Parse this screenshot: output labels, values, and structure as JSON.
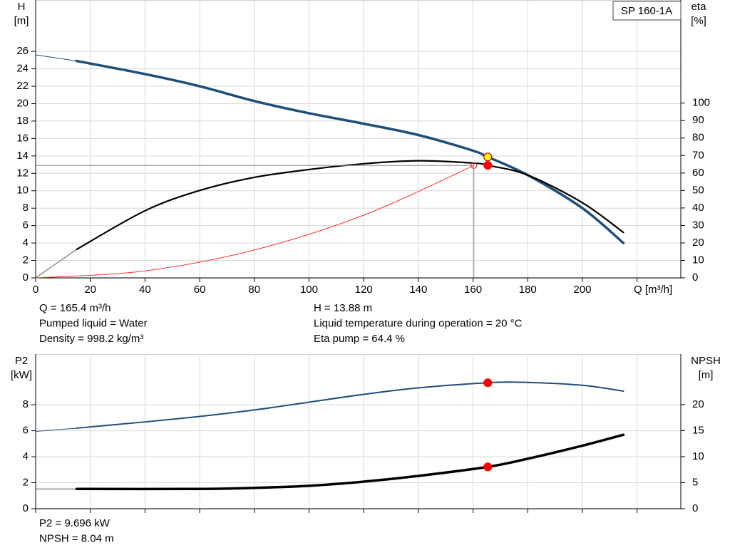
{
  "chart_data": [
    {
      "type": "line",
      "title": "SP 160-1A",
      "x_label": "Q [m³/h]",
      "y_label": "H",
      "y_unit": "[m]",
      "y2_label": "eta",
      "y2_unit": "[%]",
      "xlim": [
        0,
        236
      ],
      "xticks": [
        0,
        20,
        40,
        60,
        80,
        100,
        120,
        140,
        160,
        180,
        200,
        220
      ],
      "xtick_labels": [
        0,
        20,
        40,
        60,
        80,
        100,
        120,
        140,
        160,
        180,
        200
      ],
      "ylim": [
        0,
        31.9
      ],
      "yticks": [
        0,
        2,
        4,
        6,
        8,
        10,
        12,
        14,
        16,
        18,
        20,
        22,
        24,
        26
      ],
      "y2lim": [
        0,
        159
      ],
      "y2ticks": [
        0,
        10,
        20,
        30,
        40,
        50,
        60,
        70,
        80,
        90,
        100
      ],
      "grid": true,
      "series": [
        {
          "color": "#1f4e79",
          "width": 1,
          "x": [
            0,
            15
          ],
          "values": [
            25.6,
            24.9
          ]
        },
        {
          "color": "#1f4e79",
          "width": 3.5,
          "x": [
            15,
            40,
            60,
            80,
            100,
            120,
            140,
            160,
            165.4,
            180,
            200,
            215
          ],
          "values": [
            24.9,
            23.4,
            22.0,
            20.3,
            18.9,
            17.7,
            16.4,
            14.6,
            13.88,
            11.8,
            8.0,
            4.0
          ]
        },
        {
          "color": "#555555",
          "width": 1,
          "axis": "y2",
          "x": [
            0,
            15
          ],
          "values": [
            0,
            16.3
          ]
        },
        {
          "color": "#000000",
          "width": 2.2,
          "axis": "y2",
          "x": [
            15,
            40,
            60,
            80,
            100,
            120,
            140,
            160,
            165.4,
            180,
            200,
            215
          ],
          "values": [
            16.3,
            38.4,
            50.0,
            57.5,
            62.0,
            65.3,
            67.0,
            65.7,
            64.4,
            58.8,
            43.0,
            26.0
          ]
        },
        {
          "color": "#ff3030",
          "width": 1,
          "x": [
            0,
            40,
            80,
            120,
            160.3
          ],
          "values": [
            0,
            0.8,
            3.2,
            7.2,
            12.9
          ]
        }
      ],
      "points": [
        {
          "x": 160.3,
          "y": 12.9,
          "color": "#ff3030",
          "fill": "none",
          "crosshair": true
        },
        {
          "x": 165.4,
          "y": 64.4,
          "axis": "y2",
          "color": "#ff0000",
          "fill": "#ff0000"
        },
        {
          "x": 165.4,
          "y": 13.88,
          "color": "#cc0000",
          "fill": "#ffff00"
        }
      ],
      "info": [
        [
          "Q = 165.4 m³/h",
          "Pumped liquid = Water",
          "Density = 998.2 kg/m³"
        ],
        [
          "H = 13.88 m",
          "Liquid temperature during operation = 20 °C",
          "Eta pump = 64.4 %"
        ]
      ]
    },
    {
      "type": "line",
      "y_label": "P2",
      "y_unit": "[kW]",
      "y2_label": "NPSH",
      "y2_unit": "[m]",
      "xlim": [
        0,
        236
      ],
      "xticks": [
        0,
        20,
        40,
        60,
        80,
        100,
        120,
        140,
        160,
        180,
        200,
        220
      ],
      "ylim": [
        0,
        11.9
      ],
      "yticks": [
        0,
        2,
        4,
        6,
        8
      ],
      "y2lim": [
        0,
        29.7
      ],
      "y2ticks": [
        0,
        5,
        10,
        15,
        20
      ],
      "grid": true,
      "series": [
        {
          "color": "#1f4e79",
          "width": 1,
          "x": [
            0,
            15
          ],
          "values": [
            5.95,
            6.2
          ]
        },
        {
          "color": "#1f4e79",
          "width": 2,
          "x": [
            15,
            40,
            60,
            80,
            100,
            120,
            140,
            165.4,
            180,
            200,
            215
          ],
          "values": [
            6.2,
            6.68,
            7.1,
            7.6,
            8.2,
            8.8,
            9.3,
            9.696,
            9.72,
            9.5,
            9.05
          ]
        },
        {
          "color": "#555555",
          "width": 1,
          "axis": "y2",
          "x": [
            0,
            15
          ],
          "values": [
            3.8,
            3.8
          ]
        },
        {
          "color": "#000000",
          "width": 3.5,
          "axis": "y2",
          "x": [
            15,
            60,
            80,
            100,
            120,
            140,
            165.4,
            180,
            200,
            215
          ],
          "values": [
            3.8,
            3.8,
            4.0,
            4.4,
            5.2,
            6.3,
            8.04,
            9.6,
            12.1,
            14.2
          ]
        }
      ],
      "points": [
        {
          "x": 165.4,
          "y": 9.696,
          "color": "#ff0000",
          "fill": "#ff0000"
        },
        {
          "x": 165.4,
          "y": 8.04,
          "axis": "y2",
          "color": "#ff0000",
          "fill": "#ff0000"
        }
      ],
      "info": [
        [
          "P2 = 9.696 kW",
          "NPSH = 8.04 m"
        ]
      ]
    }
  ]
}
